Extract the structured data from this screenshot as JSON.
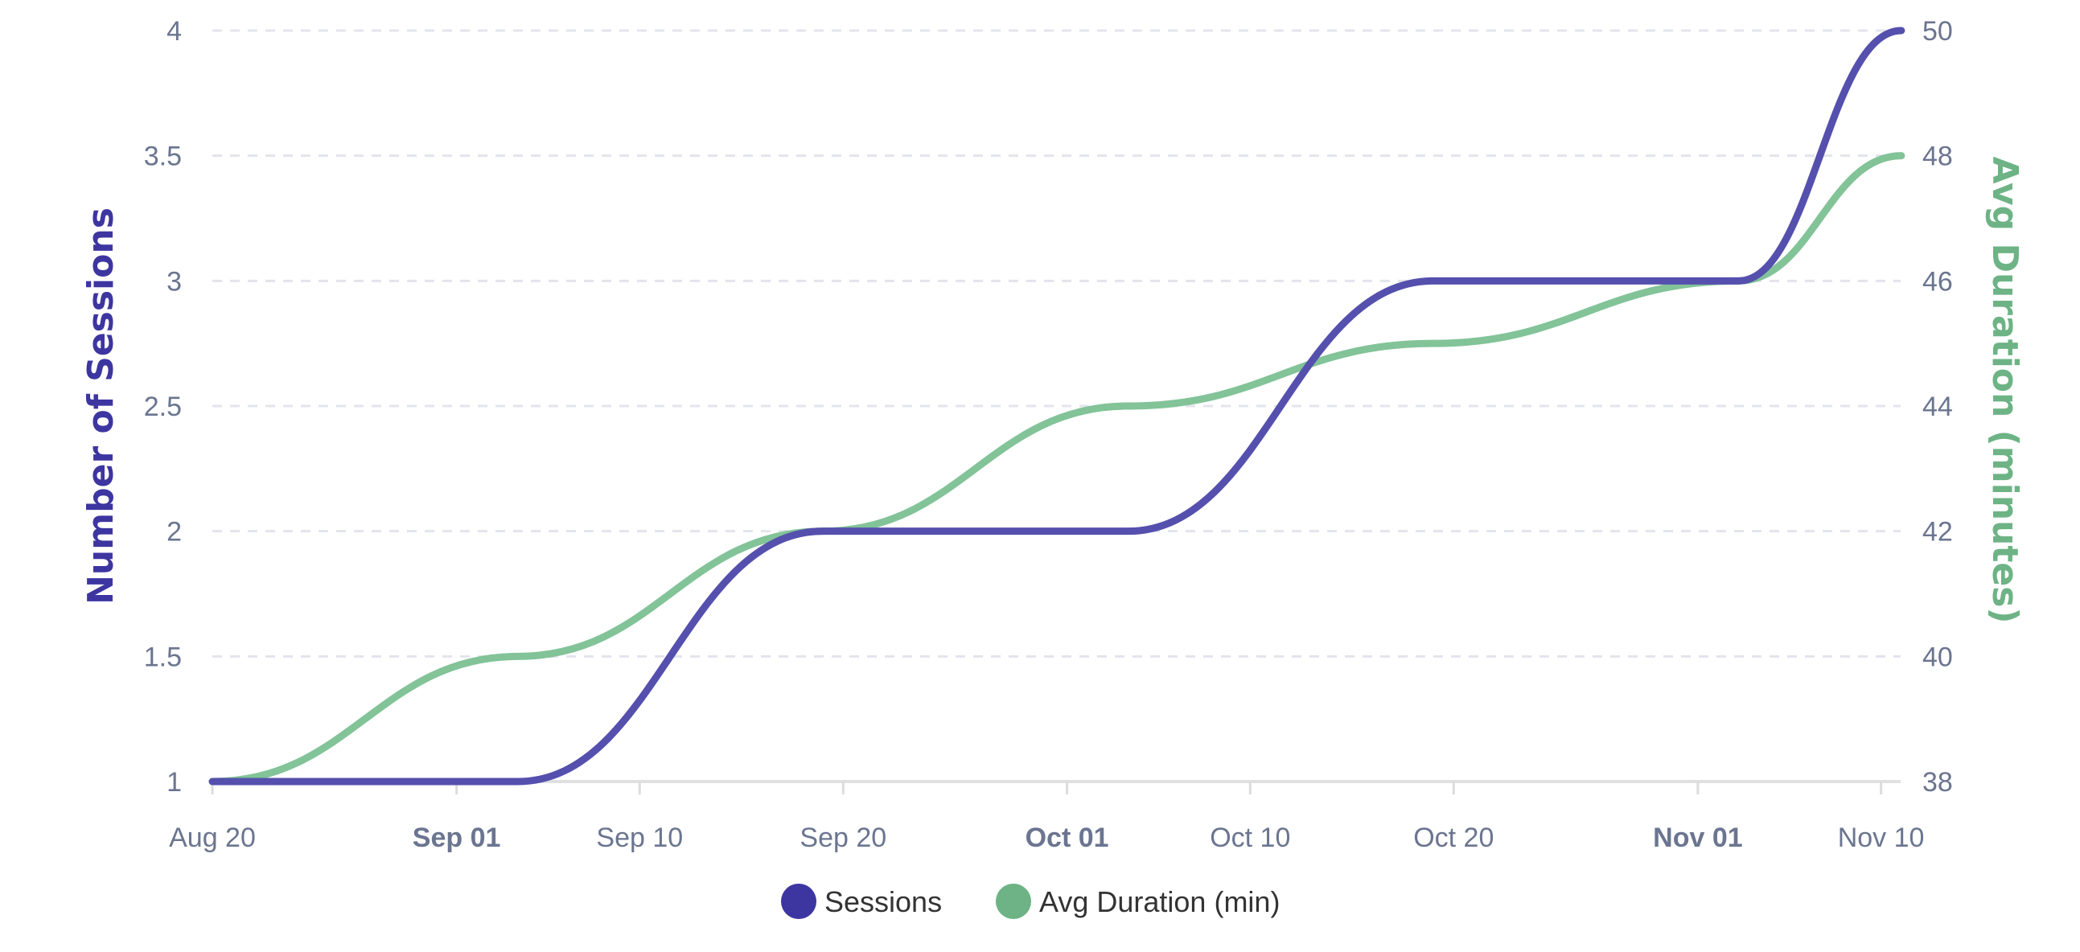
{
  "chart_data": {
    "type": "line",
    "x": [
      "2024-08-20",
      "2024-09-04",
      "2024-09-19",
      "2024-10-04",
      "2024-10-19",
      "2024-11-03",
      "2024-11-11"
    ],
    "x_ticks": [
      {
        "date": "2024-08-20",
        "label": "Aug 20",
        "bold": false
      },
      {
        "date": "2024-09-01",
        "label": "Sep 01",
        "bold": true
      },
      {
        "date": "2024-09-10",
        "label": "Sep 10",
        "bold": false
      },
      {
        "date": "2024-09-20",
        "label": "Sep 20",
        "bold": false
      },
      {
        "date": "2024-10-01",
        "label": "Oct 01",
        "bold": true
      },
      {
        "date": "2024-10-10",
        "label": "Oct 10",
        "bold": false
      },
      {
        "date": "2024-10-20",
        "label": "Oct 20",
        "bold": false
      },
      {
        "date": "2024-11-01",
        "label": "Nov 01",
        "bold": true
      },
      {
        "date": "2024-11-10",
        "label": "Nov 10",
        "bold": false
      }
    ],
    "series": [
      {
        "name": "Sessions",
        "axis": "left",
        "color": "#3d35a0",
        "values": [
          1,
          1,
          2,
          2,
          3,
          3,
          4
        ]
      },
      {
        "name": "Avg Duration (min)",
        "axis": "right",
        "color": "#6db385",
        "values": [
          38,
          40,
          42,
          44,
          45,
          46,
          48
        ]
      }
    ],
    "y_left": {
      "label": "Number of Sessions",
      "range": [
        1,
        4
      ],
      "ticks": [
        "1",
        "1.5",
        "2",
        "2.5",
        "3",
        "3.5",
        "4"
      ],
      "color": "#3d35a0"
    },
    "y_right": {
      "label": "Avg Duration (minutes)",
      "range": [
        38,
        50
      ],
      "ticks": [
        "38",
        "40",
        "42",
        "44",
        "46",
        "48",
        "50"
      ],
      "color": "#6db385"
    },
    "grid": true,
    "smooth": true,
    "legend": "bottom-center"
  }
}
